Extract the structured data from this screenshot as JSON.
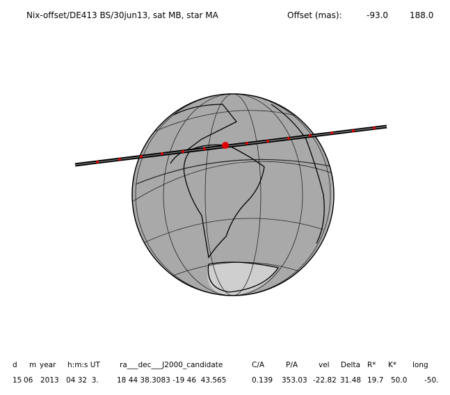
{
  "header": {
    "title": "Nix-offset/DE413 BS/30jun13, sat MB, star MA",
    "offset_label": "Offset (mas):",
    "offset_values": [
      "-93.0",
      "188.0"
    ]
  },
  "table": {
    "headers": [
      "d",
      "m",
      "year",
      "h:m:s UT",
      "ra___dec___J2000_candidate",
      "C/A",
      "P/A",
      "vel",
      "Delta",
      "R*",
      "K*",
      "long"
    ],
    "values": [
      "15",
      "06",
      "2013",
      "04 32  3.",
      "18 44 38.3083 -19 46  43.565",
      "0.139",
      "353.03",
      "-22.82",
      "31.48",
      "19.7",
      "50.0",
      "-50."
    ]
  }
}
